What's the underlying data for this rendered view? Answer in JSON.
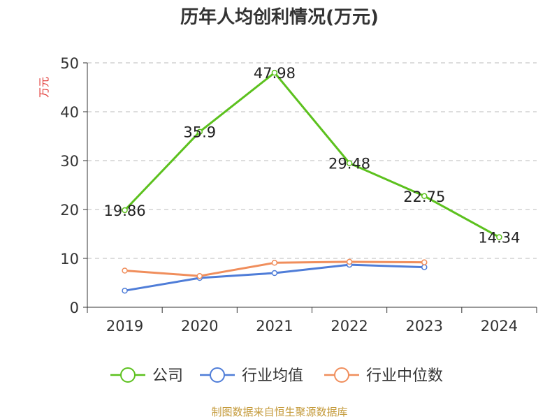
{
  "chart_data": {
    "type": "line",
    "title": "历年人均创利情况(万元)",
    "ylabel": "万元",
    "categories": [
      "2019",
      "2020",
      "2021",
      "2022",
      "2023",
      "2024"
    ],
    "ylim": [
      0,
      50
    ],
    "yticks": [
      0,
      10,
      20,
      30,
      40,
      50
    ],
    "grid": true,
    "legend_position": "bottom",
    "series": [
      {
        "name": "公司",
        "values": [
          19.86,
          35.9,
          47.98,
          29.48,
          22.75,
          14.34
        ],
        "labels": [
          "19.86",
          "35.9",
          "47.98",
          "29.48",
          "22.75",
          "14.34"
        ],
        "color": "#5cc11e"
      },
      {
        "name": "行业均值",
        "values": [
          3.4,
          6.0,
          7.0,
          8.7,
          8.2,
          null
        ],
        "color": "#4f7dd8"
      },
      {
        "name": "行业中位数",
        "values": [
          7.5,
          6.4,
          9.1,
          9.3,
          9.2,
          null
        ],
        "color": "#f08e5c"
      }
    ]
  },
  "footer": {
    "source": "制图数据来自恒生聚源数据库"
  }
}
